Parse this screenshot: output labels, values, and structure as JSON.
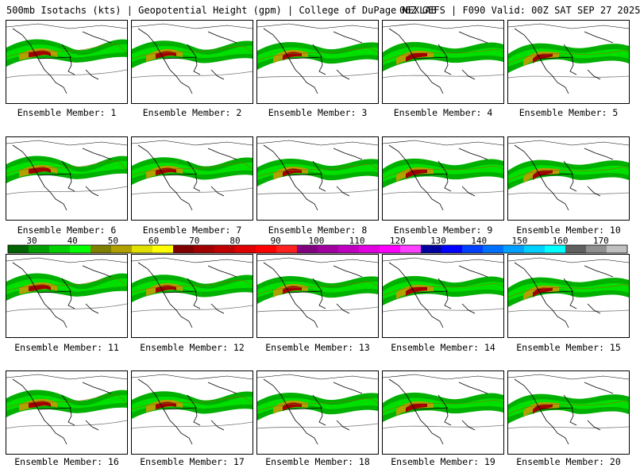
{
  "header": {
    "left": "500mb Isotachs (kts) | Geopotential Height (gpm) | College of DuPage NEXLAB",
    "right": "06Z GEFS | F090 Valid: 00Z SAT SEP 27 2025"
  },
  "colorbar": {
    "labels": [
      "30",
      "40",
      "50",
      "60",
      "70",
      "80",
      "90",
      "100",
      "110",
      "120",
      "130",
      "140",
      "150",
      "160",
      "170"
    ],
    "colors": [
      "#006400",
      "#00a000",
      "#00d000",
      "#00ff00",
      "#808000",
      "#b0a000",
      "#e0e000",
      "#ffff00",
      "#800000",
      "#a00000",
      "#c00000",
      "#e00000",
      "#ff0000",
      "#ff2020",
      "#800080",
      "#a000a0",
      "#c000c0",
      "#e000e0",
      "#ff00ff",
      "#ff40ff",
      "#0000a0",
      "#0000ff",
      "#0040ff",
      "#0070ff",
      "#00a0ff",
      "#00d0ff",
      "#00ffff",
      "#606060",
      "#909090",
      "#c0c0c0"
    ]
  },
  "members": [
    {
      "caption": "Ensemble Member: 1"
    },
    {
      "caption": "Ensemble Member: 2"
    },
    {
      "caption": "Ensemble Member: 3"
    },
    {
      "caption": "Ensemble Member: 4"
    },
    {
      "caption": "Ensemble Member: 5"
    },
    {
      "caption": "Ensemble Member: 6"
    },
    {
      "caption": "Ensemble Member: 7"
    },
    {
      "caption": "Ensemble Member: 8"
    },
    {
      "caption": "Ensemble Member: 9"
    },
    {
      "caption": "Ensemble Member: 10"
    },
    {
      "caption": "Ensemble Member: 11"
    },
    {
      "caption": "Ensemble Member: 12"
    },
    {
      "caption": "Ensemble Member: 13"
    },
    {
      "caption": "Ensemble Member: 14"
    },
    {
      "caption": "Ensemble Member: 15"
    },
    {
      "caption": "Ensemble Member: 16"
    },
    {
      "caption": "Ensemble Member: 17"
    },
    {
      "caption": "Ensemble Member: 18"
    },
    {
      "caption": "Ensemble Member: 19"
    },
    {
      "caption": "Ensemble Member: 20"
    }
  ]
}
